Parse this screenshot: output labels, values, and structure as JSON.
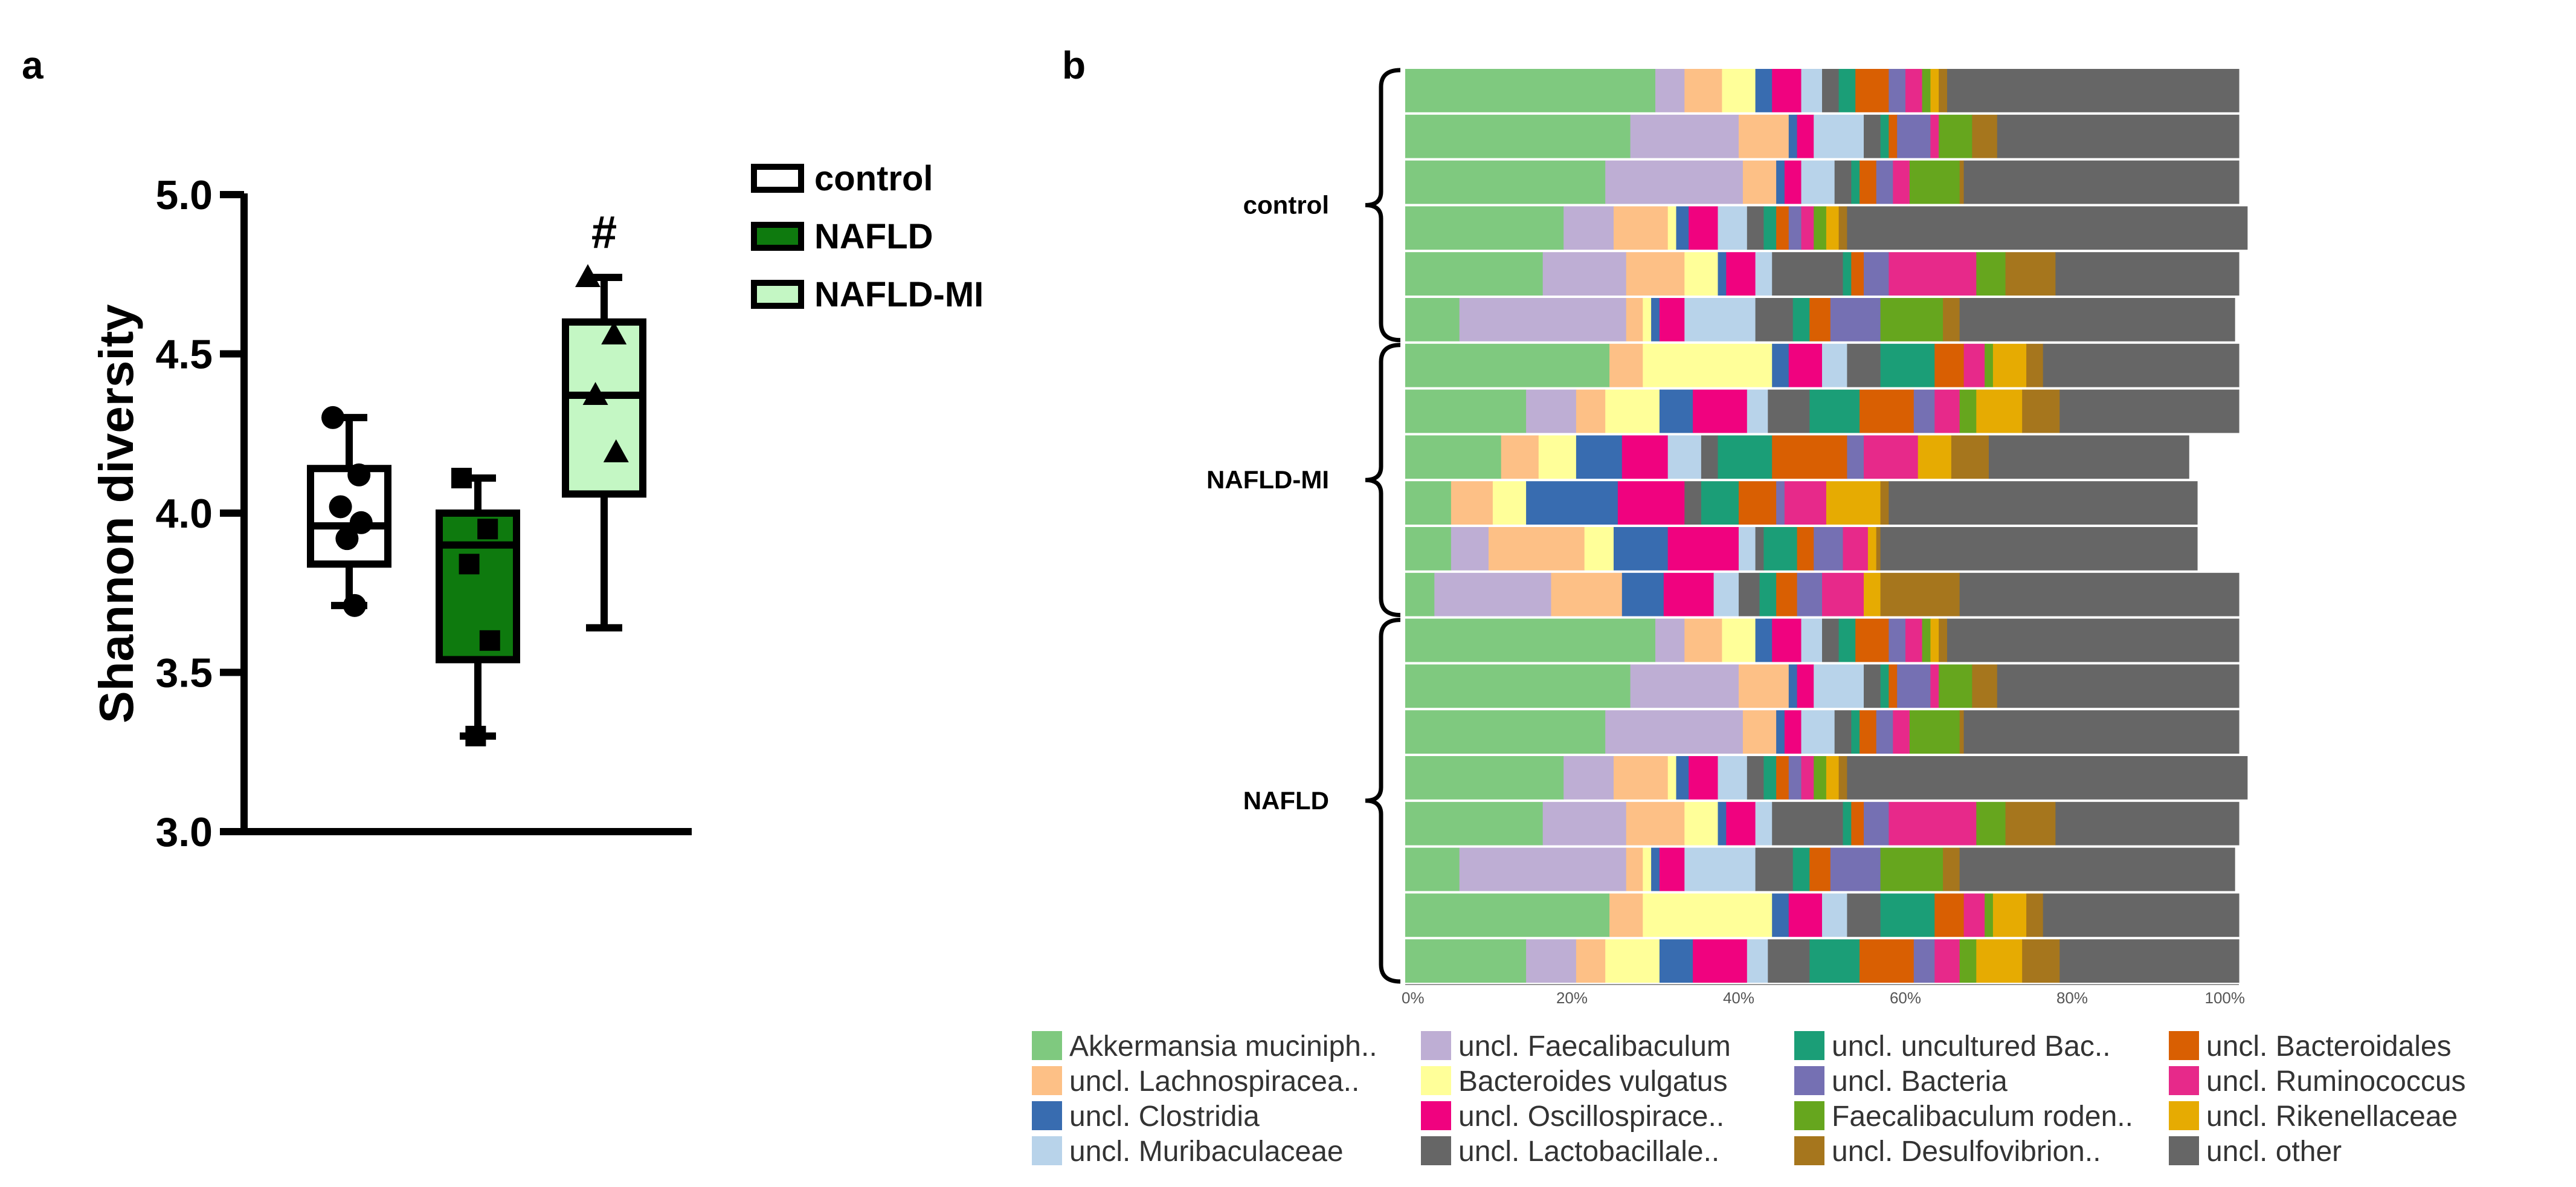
{
  "panel_a_label": "a",
  "panel_b_label": "b",
  "colors": {
    "control": "#ffffff",
    "NAFLD": "#0e7a0e",
    "NAFLD-MI": "#c4f7c4",
    "axis": "#000000"
  },
  "chart_data": [
    {
      "type": "box",
      "title": "",
      "ylabel": "Shannon diversity",
      "xlabel": "",
      "ylim": [
        3.0,
        5.0
      ],
      "yticks": [
        "3.0",
        "3.5",
        "4.0",
        "4.5",
        "5.0"
      ],
      "legend": [
        "control",
        "NAFLD",
        "NAFLD-MI"
      ],
      "significance_mark": "#",
      "groups": [
        {
          "name": "control",
          "min": 3.71,
          "q1": 3.84,
          "median": 3.96,
          "q3": 4.14,
          "max": 4.3,
          "points": [
            4.3,
            4.12,
            4.02,
            3.97,
            3.92,
            3.71
          ],
          "marker": "circle"
        },
        {
          "name": "NAFLD",
          "min": 3.3,
          "q1": 3.54,
          "median": 3.9,
          "q3": 4.0,
          "max": 4.11,
          "points": [
            4.11,
            3.95,
            3.84,
            3.6,
            3.3
          ],
          "marker": "square"
        },
        {
          "name": "NAFLD-MI",
          "min": 3.64,
          "q1": 4.06,
          "median": 4.37,
          "q3": 4.6,
          "max": 4.74,
          "points": [
            4.74,
            4.56,
            4.37,
            4.19
          ],
          "marker": "triangle"
        }
      ]
    },
    {
      "type": "stacked_bar_horizontal",
      "title": "",
      "xlabel": "",
      "xlim": [
        0,
        100
      ],
      "xticks": [
        "0%",
        "20%",
        "40%",
        "60%",
        "80%",
        "100%"
      ],
      "groups": [
        {
          "name": "control",
          "n": 6
        },
        {
          "name": "NAFLD-MI",
          "n": 6
        },
        {
          "name": "NAFLD",
          "n": 8
        }
      ],
      "taxa": [
        {
          "name": "Akkermansia muciniph..",
          "color": "#7fc97f"
        },
        {
          "name": "uncl. Lachnospiracea..",
          "color": "#fdc086"
        },
        {
          "name": "uncl. Clostridia",
          "color": "#386cb0"
        },
        {
          "name": "uncl. Muribaculaceae",
          "color": "#b8d3ea"
        },
        {
          "name": "uncl. Faecalibaculum",
          "color": "#beaed4"
        },
        {
          "name": "Bacteroides vulgatus",
          "color": "#ffff99"
        },
        {
          "name": "uncl. Oscillospirace..",
          "color": "#f0027f"
        },
        {
          "name": "uncl. Lactobacillale..",
          "color": "#666666"
        },
        {
          "name": "uncl. uncultured Bac..",
          "color": "#1b9e77"
        },
        {
          "name": "uncl. Bacteria",
          "color": "#7570b3"
        },
        {
          "name": "Faecalibaculum roden..",
          "color": "#66a61e"
        },
        {
          "name": "uncl. Desulfovibrion..",
          "color": "#a6761d"
        },
        {
          "name": "uncl. Bacteroidales",
          "color": "#d95f02"
        },
        {
          "name": "uncl. Ruminococcus",
          "color": "#e7298a"
        },
        {
          "name": "uncl. Rikenellaceae",
          "color": "#e6ab02"
        },
        {
          "name": "uncl. other",
          "color": "#666666"
        }
      ],
      "series_order": [
        "Akkermansia muciniph..",
        "uncl. Faecalibaculum",
        "uncl. Lachnospiracea..",
        "Bacteroides vulgatus",
        "uncl. Clostridia",
        "uncl. Oscillospirace..",
        "uncl. Muribaculaceae",
        "uncl. Lactobacillale..",
        "uncl. uncultured Bac..",
        "uncl. Bacteroidales",
        "uncl. Bacteria",
        "uncl. Ruminococcus",
        "Faecalibaculum roden..",
        "uncl. Rikenellaceae",
        "uncl. Desulfovibrion..",
        "uncl. other"
      ],
      "rows": [
        [
          30,
          3.5,
          4.5,
          4,
          2,
          3.5,
          2.5,
          2,
          2,
          4,
          2,
          2,
          1,
          1,
          1,
          35
        ],
        [
          27,
          13,
          6,
          0,
          1,
          2,
          6,
          2,
          1,
          1,
          4,
          1,
          4,
          0,
          3,
          29
        ],
        [
          24,
          16.5,
          4,
          0,
          1,
          2,
          4,
          2,
          1,
          2,
          2,
          2,
          6,
          0,
          0.5,
          33
        ],
        [
          19,
          6,
          6.5,
          1,
          1.5,
          3.5,
          3.5,
          2,
          1.5,
          1.5,
          1.5,
          1.5,
          1.5,
          1.5,
          1,
          48
        ],
        [
          16.5,
          10,
          7,
          4,
          1,
          3.5,
          2,
          8.5,
          1,
          1.5,
          3,
          10.5,
          3.5,
          0,
          6,
          22
        ],
        [
          6.5,
          20,
          2,
          1,
          1,
          3,
          8.5,
          4.5,
          2,
          2.5,
          6,
          0,
          7.5,
          0,
          2,
          33
        ],
        [
          24.5,
          0,
          4,
          15.5,
          2,
          4,
          3,
          4,
          6.5,
          3.5,
          0,
          2.5,
          1,
          4,
          2,
          23.5
        ],
        [
          14.5,
          6,
          3.5,
          6.5,
          4,
          6.5,
          2.5,
          5,
          6,
          6.5,
          2.5,
          3,
          2,
          5.5,
          4.5,
          21.5
        ],
        [
          11.5,
          0,
          4.5,
          4.5,
          5.5,
          5.5,
          4,
          2,
          6.5,
          9,
          2,
          6.5,
          0,
          4,
          4.5,
          24
        ],
        [
          5.5,
          0,
          5,
          4,
          11,
          8,
          0,
          2,
          4.5,
          4.5,
          1,
          5,
          0,
          6.5,
          1,
          37
        ],
        [
          5.5,
          4.5,
          11.5,
          3.5,
          6.5,
          8.5,
          2,
          1,
          4,
          2,
          3.5,
          3,
          0,
          1,
          0.5,
          38
        ],
        [
          3.5,
          14,
          8.5,
          0,
          5,
          6,
          3,
          2.5,
          2,
          2.5,
          3,
          5,
          0,
          2,
          9.5,
          33.5
        ]
      ]
    }
  ]
}
